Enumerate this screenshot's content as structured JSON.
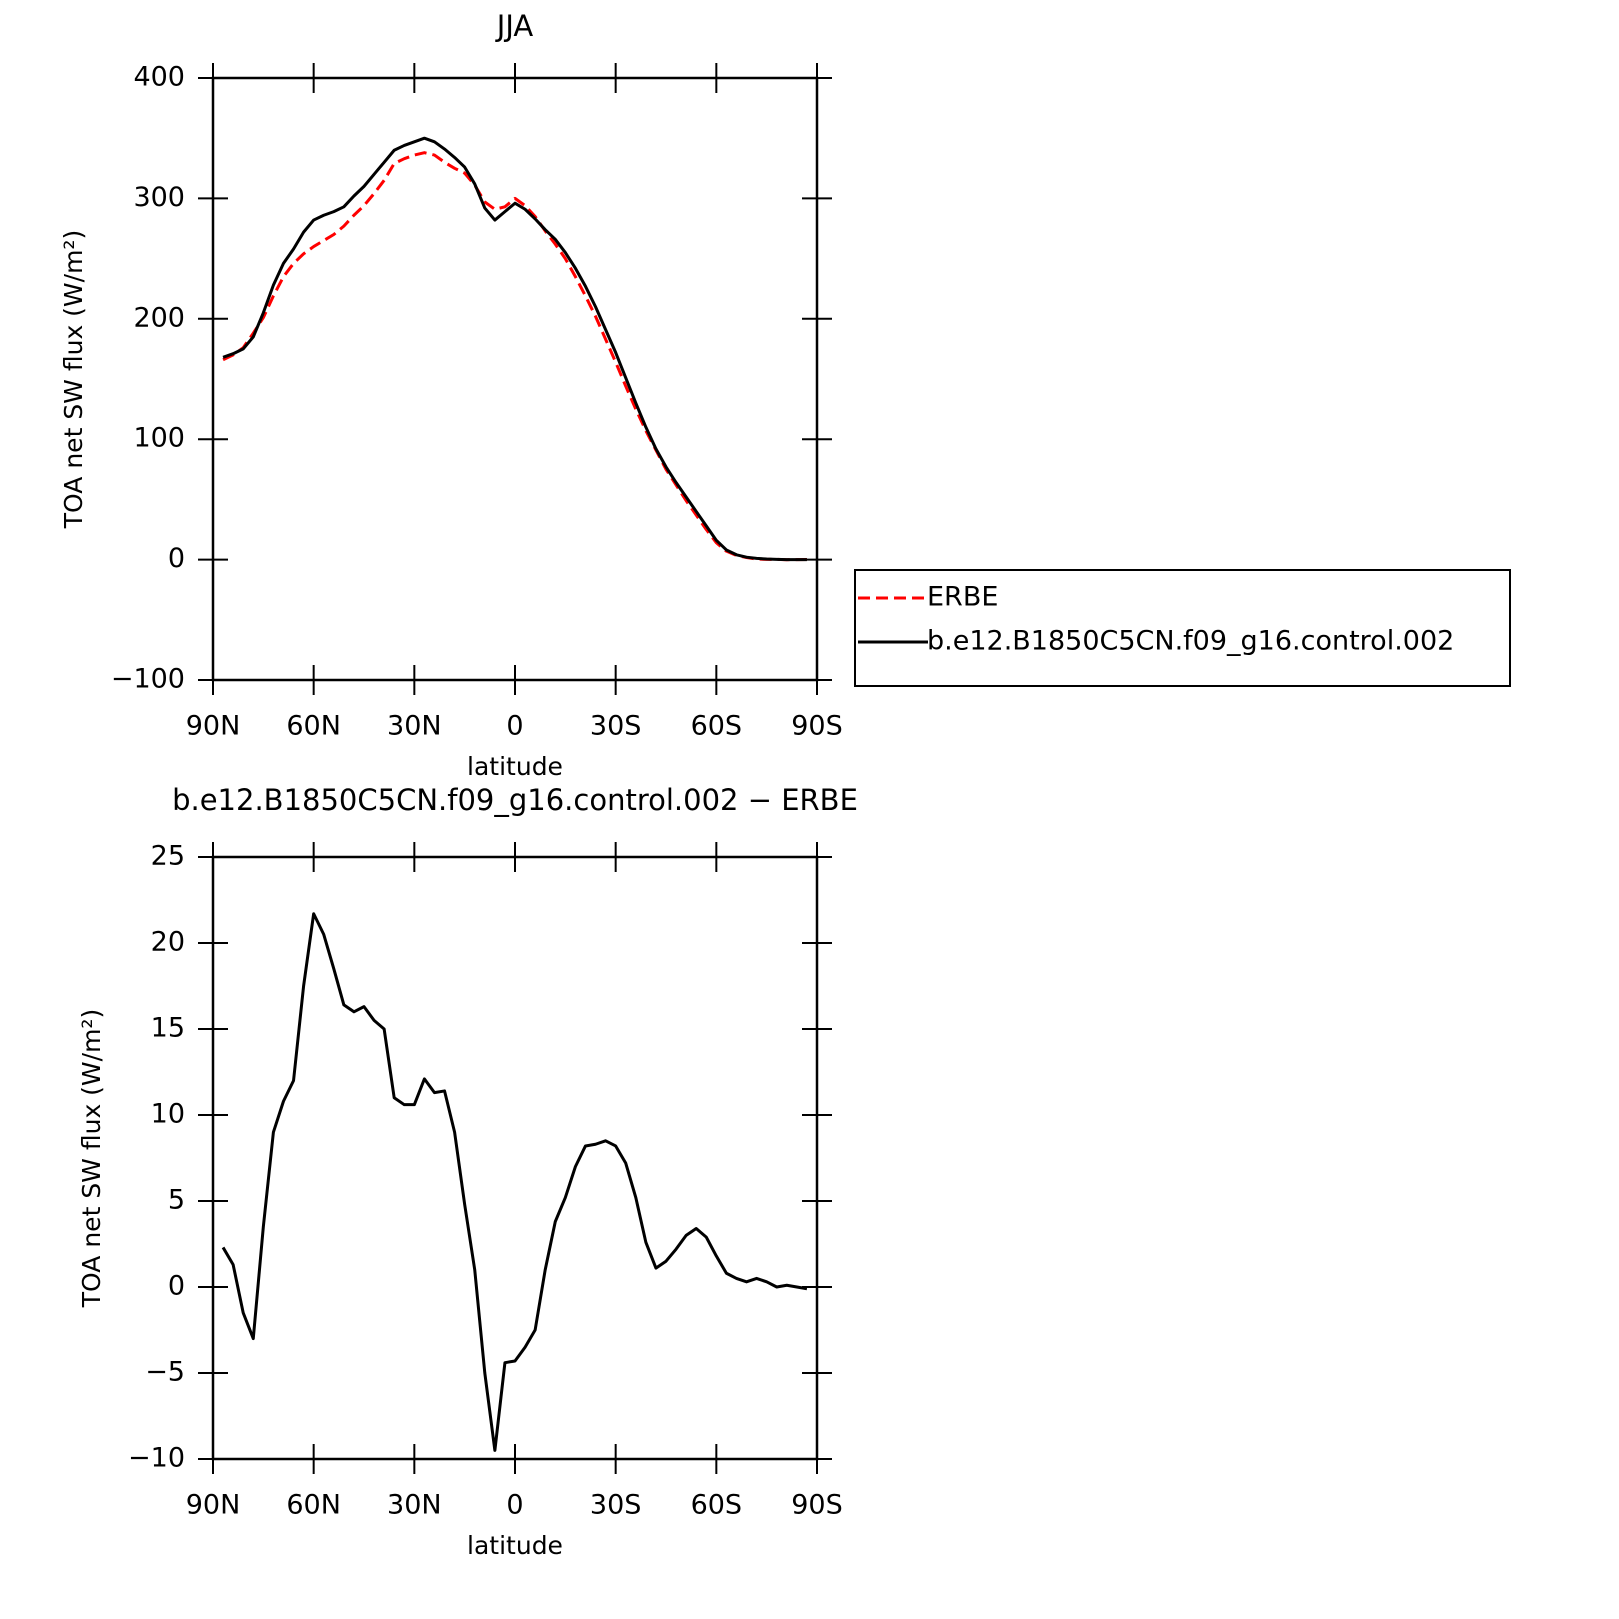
{
  "chart_data": [
    {
      "type": "line",
      "title": "JJA",
      "xlabel": "latitude",
      "ylabel": "TOA net SW flux (W/m²)",
      "x": [
        87,
        84,
        81,
        78,
        75,
        72,
        69,
        66,
        63,
        60,
        57,
        54,
        51,
        48,
        45,
        42,
        39,
        36,
        33,
        30,
        27,
        24,
        21,
        18,
        15,
        12,
        9,
        6,
        3,
        0,
        -3,
        -6,
        -9,
        -12,
        -15,
        -18,
        -21,
        -24,
        -27,
        -30,
        -33,
        -36,
        -39,
        -42,
        -45,
        -48,
        -51,
        -54,
        -57,
        -60,
        -63,
        -66,
        -69,
        -72,
        -75,
        -78,
        -81,
        -84,
        -87
      ],
      "series": [
        {
          "name": "ERBE",
          "color": "#ff0000",
          "linestyle": "dashed",
          "values": [
            166,
            170,
            176,
            188,
            201,
            219,
            235,
            246,
            254,
            260,
            265,
            270,
            277,
            286,
            294,
            304,
            315,
            329,
            333,
            336,
            338,
            336,
            330,
            325,
            321,
            311,
            297,
            291,
            293,
            300,
            294,
            285,
            273,
            262,
            250,
            235,
            219,
            202,
            183,
            164,
            144,
            125,
            107,
            91,
            75,
            62,
            49,
            37,
            25,
            14,
            7,
            3.5,
            1.7,
            0.5,
            0.2,
            0.2,
            -0.1,
            0,
            0.1
          ]
        },
        {
          "name": "b.e12.B1850C5CN.f09_g16.control.002",
          "color": "#000000",
          "linestyle": "solid",
          "values": [
            168,
            171,
            175,
            185,
            205,
            228,
            246,
            258,
            272,
            282,
            286,
            289,
            293,
            302,
            310,
            320,
            330,
            340,
            344,
            347,
            350,
            347,
            341,
            334,
            326,
            312,
            292,
            282,
            289,
            296,
            291,
            283,
            274,
            266,
            255,
            242,
            227,
            210,
            191,
            172,
            151,
            130,
            110,
            92,
            77,
            64,
            52,
            40,
            28,
            16,
            8,
            4,
            2,
            1,
            0.5,
            0.2,
            0,
            0,
            0
          ]
        }
      ],
      "xlim": [
        90,
        -90
      ],
      "xticks": [
        {
          "value": 90,
          "label": "90N"
        },
        {
          "value": 60,
          "label": "60N"
        },
        {
          "value": 30,
          "label": "30N"
        },
        0,
        {
          "value": -30,
          "label": "30S"
        },
        {
          "value": -60,
          "label": "60S"
        },
        {
          "value": -90,
          "label": "90S"
        }
      ],
      "ylim": [
        -100,
        400
      ],
      "yticks": [
        {
          "value": -100,
          "label": "−100"
        },
        0,
        100,
        200,
        300,
        400
      ],
      "legend": "right"
    },
    {
      "type": "line",
      "title": "b.e12.B1850C5CN.f09_g16.control.002 − ERBE",
      "xlabel": "latitude",
      "ylabel": "TOA net SW flux (W/m²)",
      "x": [
        87,
        84,
        81,
        78,
        75,
        72,
        69,
        66,
        63,
        60,
        57,
        54,
        51,
        48,
        45,
        42,
        39,
        36,
        33,
        30,
        27,
        24,
        21,
        18,
        15,
        12,
        9,
        6,
        3,
        0,
        -3,
        -6,
        -9,
        -12,
        -15,
        -18,
        -21,
        -24,
        -27,
        -30,
        -33,
        -36,
        -39,
        -42,
        -45,
        -48,
        -51,
        -54,
        -57,
        -60,
        -63,
        -66,
        -69,
        -72,
        -75,
        -78,
        -81,
        -84,
        -87
      ],
      "values": [
        2.3,
        1.3,
        -1.5,
        -3.0,
        3.5,
        9,
        10.8,
        12,
        17.5,
        21.7,
        20.5,
        18.5,
        16.4,
        16,
        16.3,
        15.5,
        15,
        11,
        10.6,
        10.6,
        12.1,
        11.3,
        11.4,
        9,
        4.8,
        1,
        -5,
        -9.5,
        -4.4,
        -4.3,
        -3.5,
        -2.5,
        1.0,
        3.8,
        5.2,
        7,
        8.2,
        8.3,
        8.5,
        8.2,
        7.2,
        5.2,
        2.6,
        1.1,
        1.5,
        2.2,
        3,
        3.4,
        2.9,
        1.8,
        0.8,
        0.5,
        0.3,
        0.5,
        0.3,
        0,
        0.1,
        0,
        -0.1
      ],
      "color": "#000000",
      "xlim": [
        90,
        -90
      ],
      "xticks": [
        {
          "value": 90,
          "label": "90N"
        },
        {
          "value": 60,
          "label": "60N"
        },
        {
          "value": 30,
          "label": "30N"
        },
        0,
        {
          "value": -30,
          "label": "30S"
        },
        {
          "value": -60,
          "label": "60S"
        },
        {
          "value": -90,
          "label": "90S"
        }
      ],
      "ylim": [
        -10,
        25
      ],
      "yticks": [
        {
          "value": -10,
          "label": "−10"
        },
        {
          "value": -5,
          "label": "−5"
        },
        0,
        5,
        10,
        15,
        20,
        25
      ]
    }
  ]
}
